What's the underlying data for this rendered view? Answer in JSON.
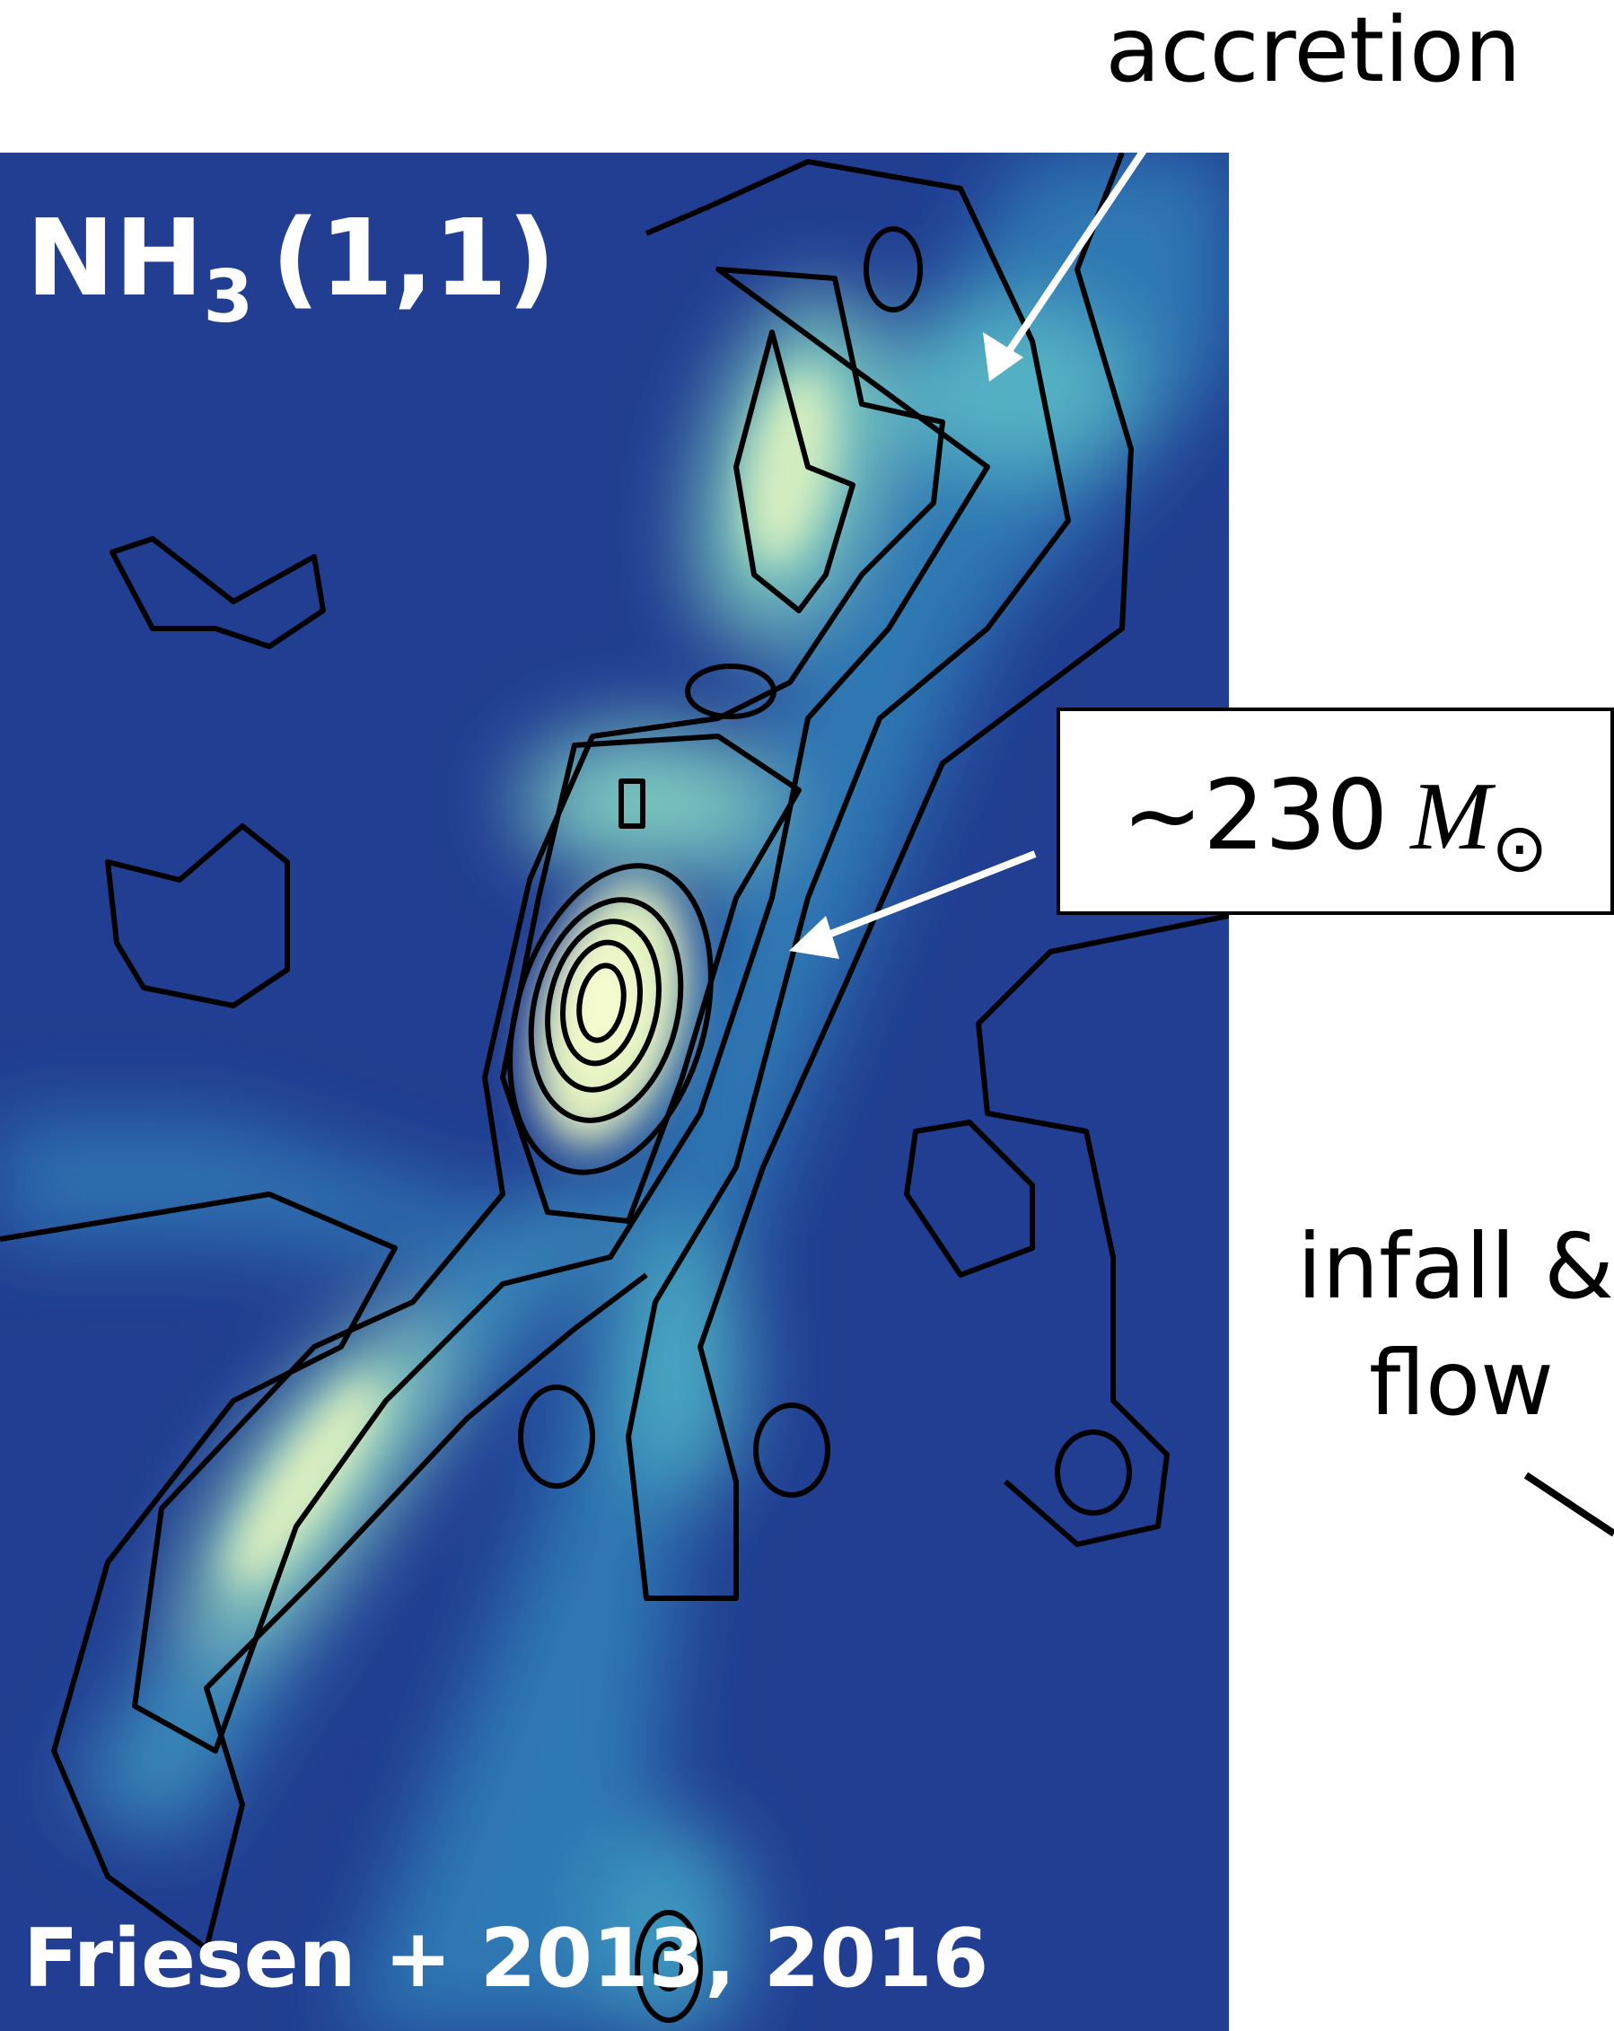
{
  "map": {
    "label": {
      "molecule": "NH",
      "subscript": "3",
      "transition": "(1,1)"
    },
    "credit": "Friesen + 2013, 2016"
  },
  "annotations": {
    "accretion": "accretion",
    "mass": {
      "approx": "~230",
      "symbol": "M",
      "sun": "⊙"
    },
    "infall": {
      "line1": "infall &",
      "line2": "flow"
    }
  }
}
